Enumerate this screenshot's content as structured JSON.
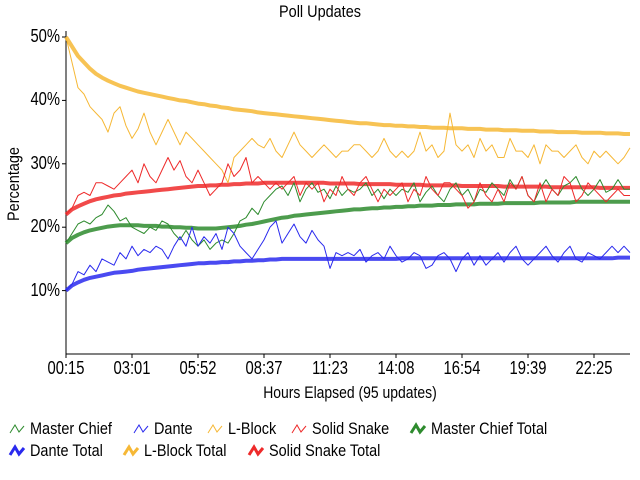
{
  "chart_data": {
    "type": "line",
    "title": "Poll Updates",
    "xlabel": "Hours Elapsed (95 updates)",
    "ylabel": "Percentage",
    "ylim": [
      0,
      50
    ],
    "yticks": [
      "10%",
      "20%",
      "30%",
      "40%",
      "50%"
    ],
    "xticks": [
      "00:15",
      "03:01",
      "05:52",
      "08:37",
      "11:23",
      "14:08",
      "16:54",
      "19:39",
      "22:25"
    ],
    "grid": false,
    "legend_position": "bottom",
    "n_updates": 95,
    "series": [
      {
        "name": "Master Chief",
        "color": "#2e8b2e",
        "width": 1,
        "values": [
          17.5,
          19,
          20.5,
          21,
          20.5,
          21.5,
          22,
          23.5,
          22.5,
          21,
          21.5,
          20,
          19.5,
          19,
          20,
          19.5,
          21,
          20.5,
          19,
          18,
          19.5,
          18,
          17,
          18,
          16.5,
          17.5,
          18,
          17.5,
          19,
          21,
          21.5,
          23,
          22,
          24,
          25,
          26,
          26.5,
          25,
          27,
          24,
          26,
          27,
          25.5,
          26,
          24.5,
          26.5,
          25,
          26,
          25.5,
          26,
          27,
          25,
          26,
          24.5,
          26,
          25,
          26,
          25.5,
          27,
          24,
          25.5,
          26.5,
          25,
          24,
          26,
          27,
          25,
          26,
          24,
          26,
          25.5,
          27,
          26,
          25,
          27.5,
          26,
          28,
          25,
          24,
          26,
          27.5,
          26,
          25,
          26.5,
          27,
          28,
          26,
          25,
          26,
          27.5,
          25.5,
          26,
          27.5,
          26,
          26
        ]
      },
      {
        "name": "Dante",
        "color": "#2a2aee",
        "width": 1,
        "values": [
          10,
          11,
          13,
          12.5,
          14,
          13,
          15,
          14.5,
          14,
          16,
          15,
          17,
          15.5,
          16.5,
          16,
          17,
          16.5,
          15,
          17,
          18.5,
          17,
          20,
          17,
          18.5,
          17.5,
          19,
          16.5,
          20,
          19,
          17,
          16,
          15,
          16.5,
          18,
          20,
          21,
          17.5,
          19,
          20.5,
          18.5,
          17.5,
          19.5,
          18,
          17,
          13.5,
          16,
          15.5,
          16,
          15.5,
          16.5,
          14.5,
          15.5,
          16,
          15,
          17,
          15.5,
          14.5,
          15,
          16,
          15.5,
          13.5,
          14,
          15.5,
          16,
          15,
          13,
          15,
          16,
          14,
          15.5,
          14,
          15,
          16,
          14.5,
          16,
          17,
          15,
          14,
          15,
          16,
          17,
          15.5,
          14.5,
          16,
          17,
          15,
          14.5,
          16,
          15.5,
          15,
          16,
          17,
          16,
          17,
          16
        ]
      },
      {
        "name": "L-Block",
        "color": "#f6b836",
        "width": 1,
        "values": [
          50,
          46,
          42,
          41,
          39,
          38,
          37,
          35,
          38,
          39,
          36,
          34,
          35.5,
          38,
          35,
          33,
          35,
          37,
          35,
          33,
          35,
          34,
          33,
          32,
          31,
          30,
          29,
          27,
          31,
          32,
          33,
          34,
          33,
          32.5,
          34,
          32,
          31,
          33,
          35,
          33,
          32,
          31,
          32,
          33,
          32,
          31,
          32,
          32,
          33,
          33,
          32,
          31,
          32,
          34,
          32,
          31,
          32,
          31,
          32,
          35,
          32,
          33,
          31,
          32,
          38,
          33,
          32,
          33,
          31,
          34,
          32,
          33,
          31,
          31,
          34,
          32,
          32,
          31,
          33,
          30,
          33,
          32,
          32,
          31,
          32,
          33,
          31,
          30,
          32,
          31,
          32,
          31,
          30,
          31,
          32.5
        ]
      },
      {
        "name": "Solid Snake",
        "color": "#ee2a2a",
        "width": 1,
        "values": [
          22,
          23,
          25,
          25.5,
          25,
          27,
          27,
          26.5,
          26,
          27,
          28,
          29,
          27,
          30,
          28,
          27,
          29,
          31,
          29,
          30.5,
          28,
          27,
          29,
          27,
          25,
          26,
          27,
          30,
          28,
          29,
          31,
          27,
          28,
          27,
          26,
          27,
          26,
          27,
          28,
          25,
          27,
          26,
          27,
          24,
          26,
          25,
          28,
          26,
          25,
          27,
          28,
          26,
          24,
          26,
          25,
          26,
          27,
          24,
          26,
          25,
          28,
          26,
          25,
          27,
          27,
          26,
          25,
          23,
          24,
          27,
          25,
          24,
          26,
          24,
          27,
          26,
          28,
          25,
          24,
          27,
          24,
          26,
          25,
          28,
          27,
          24,
          25,
          27,
          26,
          25,
          24,
          25,
          26,
          25,
          25
        ]
      },
      {
        "name": "Master Chief Total",
        "color": "#2e8b2e",
        "width": 4,
        "values": [
          17.5,
          18.3,
          18.8,
          19.2,
          19.5,
          19.7,
          19.9,
          20.1,
          20.2,
          20.3,
          20.3,
          20.3,
          20.3,
          20.2,
          20.2,
          20.2,
          20.1,
          20.1,
          20.0,
          20.0,
          19.9,
          19.9,
          19.8,
          19.8,
          19.8,
          19.8,
          19.9,
          20.0,
          20.1,
          20.2,
          20.4,
          20.5,
          20.7,
          20.9,
          21.1,
          21.3,
          21.5,
          21.6,
          21.8,
          21.9,
          22.0,
          22.1,
          22.2,
          22.3,
          22.4,
          22.5,
          22.6,
          22.7,
          22.8,
          22.8,
          22.9,
          23.0,
          23.0,
          23.1,
          23.1,
          23.2,
          23.2,
          23.3,
          23.3,
          23.4,
          23.4,
          23.4,
          23.5,
          23.5,
          23.5,
          23.6,
          23.6,
          23.6,
          23.6,
          23.7,
          23.7,
          23.7,
          23.7,
          23.8,
          23.8,
          23.8,
          23.8,
          23.8,
          23.8,
          23.9,
          23.9,
          23.9,
          23.9,
          23.9,
          23.9,
          24.0,
          24.0,
          24.0,
          24.0,
          24.0,
          24.0,
          24.0,
          24.0,
          24.0,
          24.0
        ]
      },
      {
        "name": "Dante Total",
        "color": "#2a2aee",
        "width": 4,
        "values": [
          10,
          10.8,
          11.3,
          11.7,
          12.0,
          12.2,
          12.4,
          12.6,
          12.8,
          12.9,
          13.0,
          13.1,
          13.3,
          13.4,
          13.5,
          13.6,
          13.7,
          13.8,
          13.9,
          14.0,
          14.1,
          14.2,
          14.3,
          14.3,
          14.4,
          14.4,
          14.5,
          14.5,
          14.6,
          14.6,
          14.7,
          14.7,
          14.8,
          14.8,
          14.9,
          14.9,
          15.0,
          15.0,
          15.0,
          15.0,
          15.0,
          15.0,
          15.0,
          15.0,
          15.0,
          15.0,
          15.0,
          15.0,
          15.0,
          15.0,
          15.0,
          15.0,
          15.0,
          15.0,
          15.0,
          15.0,
          15.1,
          15.1,
          15.1,
          15.1,
          15.1,
          15.1,
          15.1,
          15.1,
          15.1,
          15.1,
          15.1,
          15.1,
          15.1,
          15.1,
          15.1,
          15.1,
          15.1,
          15.1,
          15.1,
          15.1,
          15.1,
          15.1,
          15.1,
          15.1,
          15.1,
          15.1,
          15.1,
          15.1,
          15.1,
          15.1,
          15.1,
          15.1,
          15.1,
          15.1,
          15.1,
          15.1,
          15.2,
          15.2,
          15.2
        ]
      },
      {
        "name": "L-Block Total",
        "color": "#f6b836",
        "width": 4,
        "values": [
          50,
          48.5,
          47,
          46,
          45,
          44.2,
          43.6,
          43.1,
          42.7,
          42.3,
          42.0,
          41.7,
          41.4,
          41.2,
          41.0,
          40.8,
          40.6,
          40.4,
          40.2,
          40.0,
          39.9,
          39.7,
          39.5,
          39.4,
          39.2,
          39.1,
          38.9,
          38.8,
          38.6,
          38.5,
          38.4,
          38.3,
          38.1,
          38.0,
          37.9,
          37.8,
          37.7,
          37.6,
          37.5,
          37.4,
          37.3,
          37.2,
          37.1,
          37.0,
          36.9,
          36.8,
          36.7,
          36.6,
          36.5,
          36.4,
          36.4,
          36.3,
          36.2,
          36.1,
          36.1,
          36.0,
          36.0,
          35.9,
          35.9,
          35.8,
          35.8,
          35.7,
          35.7,
          35.7,
          35.6,
          35.6,
          35.6,
          35.5,
          35.5,
          35.5,
          35.4,
          35.4,
          35.4,
          35.3,
          35.3,
          35.3,
          35.2,
          35.2,
          35.2,
          35.1,
          35.1,
          35.1,
          35.0,
          35.0,
          35.0,
          35.0,
          34.9,
          34.9,
          34.9,
          34.9,
          34.8,
          34.8,
          34.8,
          34.7,
          34.7
        ]
      },
      {
        "name": "Solid Snake Total",
        "color": "#ee2a2a",
        "width": 4,
        "values": [
          22,
          22.8,
          23.3,
          23.7,
          24.1,
          24.4,
          24.6,
          24.8,
          25.0,
          25.1,
          25.3,
          25.4,
          25.5,
          25.6,
          25.7,
          25.8,
          25.9,
          26.0,
          26.1,
          26.2,
          26.3,
          26.4,
          26.5,
          26.5,
          26.6,
          26.6,
          26.7,
          26.7,
          26.8,
          26.8,
          26.9,
          26.9,
          26.9,
          27.0,
          27.0,
          27.0,
          27.0,
          27.0,
          27.0,
          27.0,
          27.0,
          27.0,
          27.0,
          27.0,
          26.9,
          26.9,
          26.9,
          26.9,
          26.9,
          26.8,
          26.8,
          26.8,
          26.8,
          26.8,
          26.8,
          26.7,
          26.7,
          26.7,
          26.7,
          26.7,
          26.6,
          26.6,
          26.6,
          26.6,
          26.6,
          26.6,
          26.5,
          26.5,
          26.5,
          26.5,
          26.5,
          26.5,
          26.5,
          26.4,
          26.4,
          26.4,
          26.4,
          26.4,
          26.4,
          26.4,
          26.4,
          26.3,
          26.3,
          26.3,
          26.3,
          26.3,
          26.3,
          26.3,
          26.3,
          26.2,
          26.2,
          26.2,
          26.2,
          26.2,
          26.2
        ]
      }
    ]
  },
  "legend": {
    "row1": [
      "Master Chief",
      "Dante",
      "L-Block",
      "Solid Snake",
      "Master Chief Total"
    ],
    "row2": [
      "Dante Total",
      "L-Block Total",
      "Solid Snake Total"
    ]
  }
}
